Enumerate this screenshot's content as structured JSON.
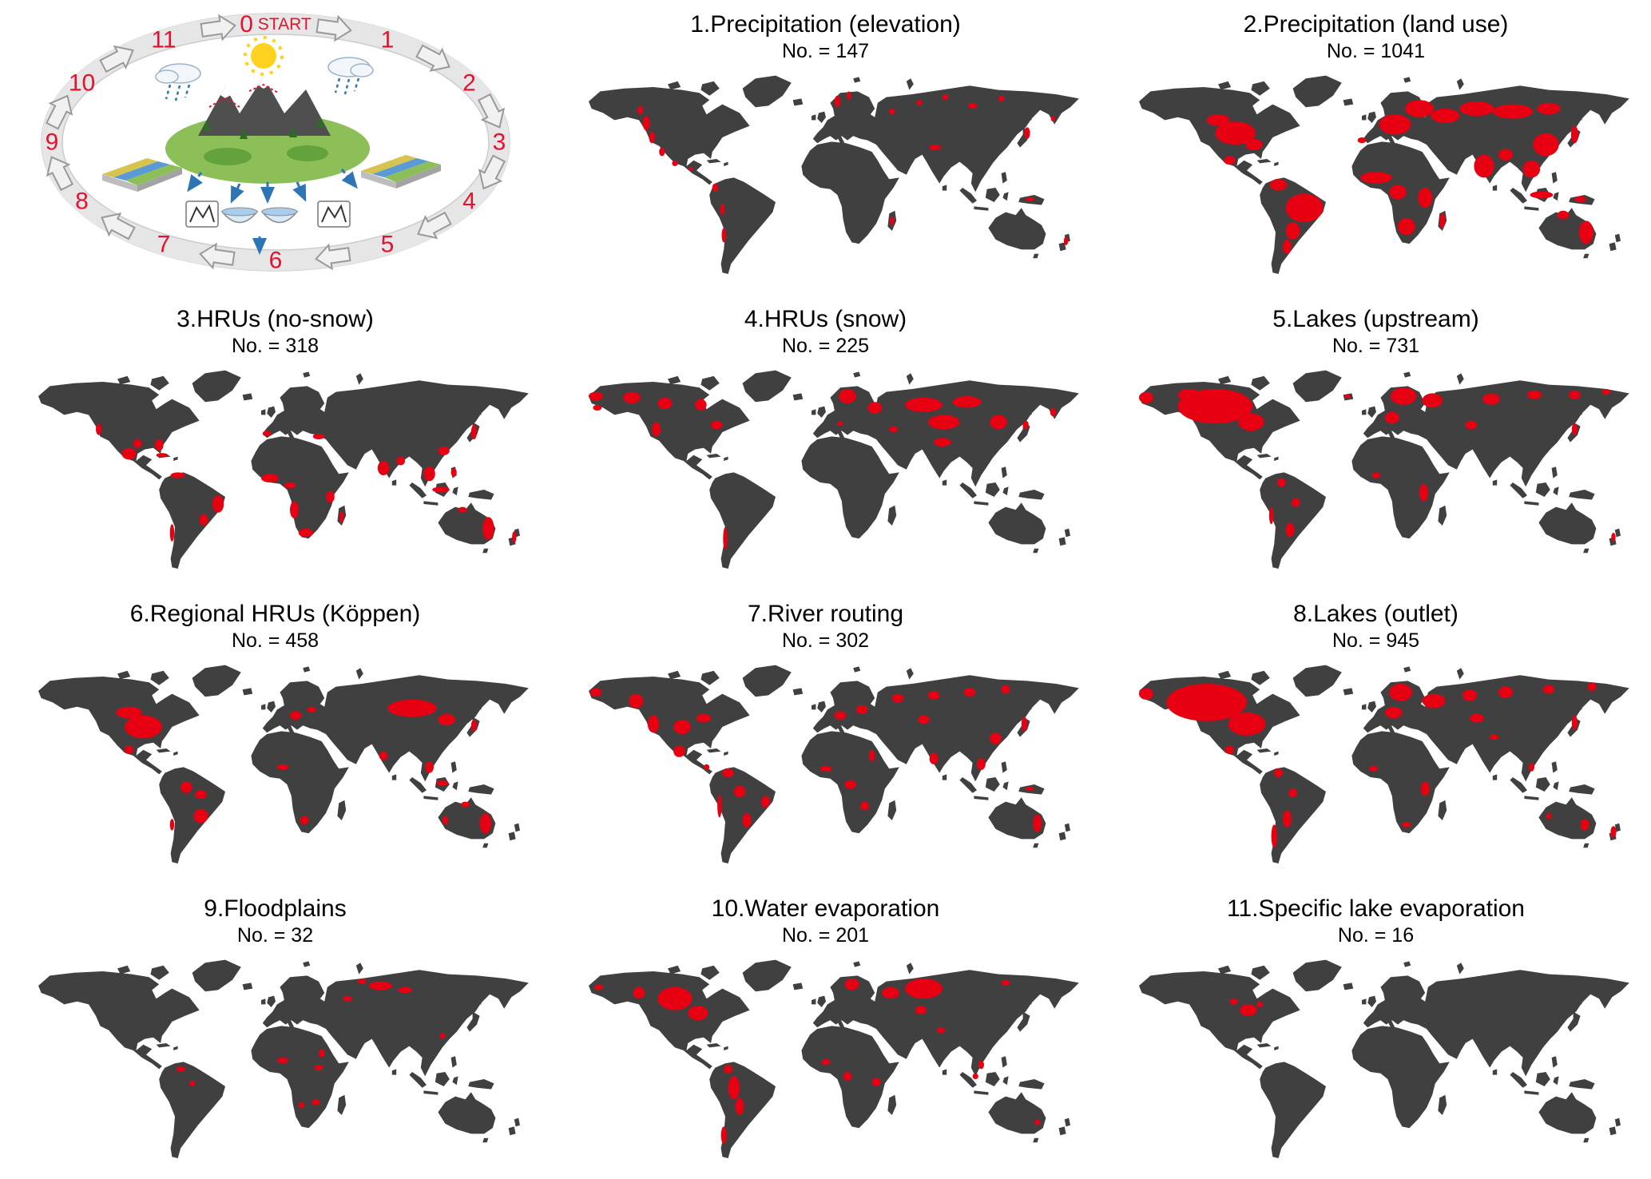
{
  "colors": {
    "land": "#404040",
    "highlight": "#e60012",
    "cycle_number": "#e8112d",
    "ring": "#e6e6e6"
  },
  "cycle": {
    "steps": [
      "0 START",
      "1",
      "2",
      "3",
      "4",
      "5",
      "6",
      "7",
      "8",
      "9",
      "10",
      "11"
    ]
  },
  "count_prefix": "No. =",
  "panels": [
    {
      "title": "1.Precipitation (elevation)",
      "count": 147,
      "count_label": "No. = 147",
      "highlights": [
        [
          55,
          40,
          2.5,
          5
        ],
        [
          51,
          31,
          2,
          3
        ],
        [
          59,
          50,
          2,
          4
        ],
        [
          66,
          60,
          2,
          3
        ],
        [
          75,
          68,
          2,
          2
        ],
        [
          86,
          72,
          1.5,
          1.5
        ],
        [
          103,
          85,
          2,
          3
        ],
        [
          108,
          100,
          1.5,
          4
        ],
        [
          109,
          118,
          1.5,
          5
        ],
        [
          188,
          25,
          2,
          4
        ],
        [
          196,
          21,
          1.5,
          3
        ],
        [
          226,
          32,
          2,
          2
        ],
        [
          245,
          26,
          2,
          2
        ],
        [
          263,
          22,
          2,
          2
        ],
        [
          282,
          28,
          3,
          2
        ],
        [
          302,
          23,
          2,
          2
        ],
        [
          256,
          57,
          4,
          2
        ],
        [
          320,
          47,
          2,
          4
        ],
        [
          338,
          37,
          1.5,
          2
        ],
        [
          226,
          108,
          1.5,
          3
        ],
        [
          322,
          93,
          3,
          1.5
        ],
        [
          347,
          122,
          1.5,
          3
        ]
      ]
    },
    {
      "title": "2.Precipitation (land use)",
      "count": 1041,
      "count_label": "No. = 1041",
      "highlights": [
        [
          82,
          47,
          14,
          8
        ],
        [
          70,
          38,
          8,
          4
        ],
        [
          95,
          55,
          6,
          4
        ],
        [
          78,
          66,
          4,
          3
        ],
        [
          112,
          83,
          6,
          4
        ],
        [
          130,
          99,
          13,
          10
        ],
        [
          122,
          115,
          5,
          6
        ],
        [
          118,
          126,
          3,
          5
        ],
        [
          193,
          41,
          11,
          7
        ],
        [
          210,
          30,
          10,
          6
        ],
        [
          228,
          35,
          10,
          5
        ],
        [
          250,
          30,
          12,
          5
        ],
        [
          275,
          32,
          14,
          5
        ],
        [
          300,
          30,
          8,
          4
        ],
        [
          298,
          55,
          9,
          8
        ],
        [
          288,
          72,
          6,
          6
        ],
        [
          255,
          70,
          7,
          8
        ],
        [
          270,
          62,
          5,
          4
        ],
        [
          180,
          78,
          11,
          4
        ],
        [
          195,
          88,
          6,
          5
        ],
        [
          214,
          92,
          5,
          7
        ],
        [
          201,
          112,
          6,
          6
        ],
        [
          226,
          108,
          2,
          5
        ],
        [
          295,
          90,
          8,
          2.5
        ],
        [
          322,
          93,
          4,
          2
        ],
        [
          318,
          48,
          2.5,
          6
        ],
        [
          326,
          116,
          5,
          8
        ],
        [
          310,
          104,
          4,
          3
        ],
        [
          170,
          52,
          3,
          2
        ]
      ]
    },
    {
      "title": "3.HRUs (no-snow)",
      "count": 318,
      "count_label": "No. = 318",
      "highlights": [
        [
          57,
          48,
          2,
          4
        ],
        [
          78,
          65,
          5,
          4
        ],
        [
          84,
          58,
          3,
          3
        ],
        [
          99,
          59,
          3,
          4
        ],
        [
          101,
          66,
          4,
          1.5
        ],
        [
          112,
          80,
          5,
          2
        ],
        [
          140,
          100,
          4,
          6
        ],
        [
          130,
          111,
          3,
          4
        ],
        [
          108,
          120,
          1.5,
          6
        ],
        [
          174,
          51,
          3,
          2
        ],
        [
          210,
          53,
          4,
          2
        ],
        [
          176,
          82,
          6,
          3
        ],
        [
          190,
          87,
          4,
          2
        ],
        [
          193,
          104,
          3,
          6
        ],
        [
          201,
          120,
          5,
          3
        ],
        [
          218,
          95,
          3,
          4
        ],
        [
          226,
          109,
          1.5,
          4
        ],
        [
          255,
          75,
          4,
          5
        ],
        [
          267,
          70,
          3,
          3
        ],
        [
          287,
          79,
          4,
          5
        ],
        [
          295,
          90,
          6,
          2
        ],
        [
          304,
          78,
          2,
          3
        ],
        [
          297,
          63,
          4,
          3
        ],
        [
          318,
          50,
          2,
          5
        ],
        [
          328,
          117,
          4,
          8
        ],
        [
          310,
          104,
          3,
          2
        ],
        [
          346,
          123,
          1.5,
          4
        ]
      ]
    },
    {
      "title": "4.HRUs (snow)",
      "count": 225,
      "count_label": "No. = 225",
      "highlights": [
        [
          20,
          25,
          5,
          3
        ],
        [
          21,
          33,
          3,
          2
        ],
        [
          45,
          26,
          6,
          4
        ],
        [
          68,
          30,
          5,
          4
        ],
        [
          93,
          31,
          4,
          4
        ],
        [
          62,
          48,
          3,
          5
        ],
        [
          104,
          45,
          4,
          3
        ],
        [
          195,
          25,
          6,
          5
        ],
        [
          214,
          33,
          5,
          4
        ],
        [
          248,
          31,
          13,
          5
        ],
        [
          278,
          29,
          10,
          4
        ],
        [
          262,
          43,
          11,
          5
        ],
        [
          261,
          57,
          6,
          3
        ],
        [
          300,
          43,
          6,
          5
        ],
        [
          338,
          36,
          2,
          3
        ],
        [
          227,
          48,
          3,
          2
        ],
        [
          190,
          44,
          2,
          1.5
        ],
        [
          110,
          124,
          1.5,
          8
        ],
        [
          319,
          45,
          2,
          3
        ]
      ]
    },
    {
      "title": "5.Lakes (upstream)",
      "count": 731,
      "count_label": "No. = 731",
      "highlights": [
        [
          68,
          32,
          26,
          12
        ],
        [
          93,
          43,
          9,
          6
        ],
        [
          20,
          26,
          5,
          4
        ],
        [
          50,
          24,
          8,
          4
        ],
        [
          199,
          25,
          9,
          6
        ],
        [
          219,
          28,
          7,
          5
        ],
        [
          191,
          40,
          5,
          4
        ],
        [
          260,
          27,
          6,
          4
        ],
        [
          290,
          24,
          5,
          3
        ],
        [
          318,
          24,
          4,
          3
        ],
        [
          340,
          22,
          3,
          2
        ],
        [
          318,
          48,
          2,
          4
        ],
        [
          246,
          45,
          4,
          3
        ],
        [
          213,
          92,
          3,
          6
        ],
        [
          180,
          80,
          3,
          2
        ],
        [
          114,
          85,
          3,
          3
        ],
        [
          124,
          99,
          3,
          3
        ],
        [
          120,
          118,
          3,
          5
        ],
        [
          107,
          108,
          1.5,
          6
        ],
        [
          345,
          123,
          1.5,
          3
        ],
        [
          160,
          25,
          2,
          1.5
        ]
      ]
    },
    {
      "title": "6.Regional HRUs (Köppen)",
      "count": 458,
      "count_label": "No. = 458",
      "highlights": [
        [
          88,
          50,
          13,
          8
        ],
        [
          78,
          40,
          9,
          4
        ],
        [
          78,
          66,
          3,
          3
        ],
        [
          118,
          92,
          4,
          4
        ],
        [
          128,
          97,
          4,
          3
        ],
        [
          128,
          112,
          5,
          5
        ],
        [
          108,
          118,
          1.5,
          4
        ],
        [
          194,
          42,
          4,
          3
        ],
        [
          205,
          38,
          3,
          2
        ],
        [
          275,
          37,
          17,
          6
        ],
        [
          299,
          45,
          6,
          4
        ],
        [
          287,
          78,
          3,
          4
        ],
        [
          255,
          70,
          3,
          3
        ],
        [
          185,
          78,
          4,
          2
        ],
        [
          200,
          115,
          3,
          3
        ],
        [
          326,
          117,
          4,
          7
        ],
        [
          312,
          104,
          3,
          2
        ],
        [
          298,
          115,
          2,
          3
        ],
        [
          318,
          49,
          2,
          4
        ],
        [
          296,
          89,
          4,
          2
        ]
      ]
    },
    {
      "title": "7.River routing",
      "count": 302,
      "count_label": "No. = 302",
      "highlights": [
        [
          20,
          26,
          4,
          3
        ],
        [
          48,
          32,
          5,
          5
        ],
        [
          60,
          48,
          4,
          6
        ],
        [
          80,
          50,
          6,
          5
        ],
        [
          95,
          44,
          5,
          3
        ],
        [
          78,
          67,
          4,
          4
        ],
        [
          97,
          78,
          2,
          2
        ],
        [
          112,
          82,
          4,
          3
        ],
        [
          120,
          95,
          4,
          4
        ],
        [
          138,
          102,
          3,
          4
        ],
        [
          125,
          115,
          3,
          5
        ],
        [
          106,
          105,
          1.5,
          8
        ],
        [
          190,
          42,
          4,
          3
        ],
        [
          205,
          38,
          4,
          3
        ],
        [
          230,
          30,
          4,
          3
        ],
        [
          255,
          28,
          4,
          3
        ],
        [
          280,
          26,
          4,
          3
        ],
        [
          305,
          24,
          3,
          3
        ],
        [
          248,
          45,
          4,
          3
        ],
        [
          255,
          72,
          3,
          4
        ],
        [
          288,
          76,
          3,
          4
        ],
        [
          298,
          58,
          4,
          4
        ],
        [
          318,
          48,
          2,
          5
        ],
        [
          322,
          93,
          3,
          1.5
        ],
        [
          327,
          117,
          3,
          6
        ],
        [
          212,
          70,
          2,
          4
        ],
        [
          197,
          90,
          4,
          3
        ],
        [
          207,
          105,
          3,
          3
        ],
        [
          180,
          79,
          4,
          2
        ]
      ]
    },
    {
      "title": "8.Lakes (outlet)",
      "count": 945,
      "count_label": "No. = 945",
      "highlights": [
        [
          62,
          33,
          28,
          13
        ],
        [
          90,
          48,
          13,
          8
        ],
        [
          20,
          27,
          5,
          4
        ],
        [
          78,
          66,
          3,
          3
        ],
        [
          197,
          26,
          8,
          6
        ],
        [
          192,
          40,
          6,
          4
        ],
        [
          220,
          32,
          8,
          5
        ],
        [
          245,
          28,
          5,
          4
        ],
        [
          270,
          26,
          5,
          4
        ],
        [
          300,
          24,
          4,
          3
        ],
        [
          330,
          22,
          3,
          3
        ],
        [
          250,
          44,
          5,
          3
        ],
        [
          262,
          57,
          3,
          2
        ],
        [
          318,
          47,
          2,
          5
        ],
        [
          288,
          78,
          2,
          3
        ],
        [
          112,
          82,
          3,
          3
        ],
        [
          122,
          96,
          3,
          3
        ],
        [
          118,
          114,
          3,
          6
        ],
        [
          109,
          126,
          2,
          8
        ],
        [
          214,
          93,
          3,
          5
        ],
        [
          201,
          118,
          3,
          2
        ],
        [
          178,
          79,
          3,
          2
        ],
        [
          325,
          118,
          3,
          4
        ],
        [
          300,
          112,
          2,
          2
        ],
        [
          345,
          123,
          2,
          4
        ]
      ]
    },
    {
      "title": "9.Floodplains",
      "count": 32,
      "count_label": "No. = 32",
      "highlights": [
        [
          253,
          25,
          8,
          3
        ],
        [
          270,
          28,
          5,
          2
        ],
        [
          240,
          22,
          3,
          2
        ],
        [
          230,
          34,
          3,
          2
        ],
        [
          185,
          77,
          4,
          2
        ],
        [
          212,
          72,
          2,
          3
        ],
        [
          210,
          82,
          3,
          2
        ],
        [
          208,
          106,
          3,
          2
        ],
        [
          198,
          108,
          2,
          2
        ],
        [
          114,
          83,
          3,
          2
        ],
        [
          122,
          93,
          2,
          2
        ],
        [
          296,
          60,
          2,
          2
        ]
      ]
    },
    {
      "title": "10.Water evaporation",
      "count": 201,
      "count_label": "No. = 201",
      "highlights": [
        [
          75,
          34,
          12,
          8
        ],
        [
          91,
          44,
          7,
          5
        ],
        [
          50,
          30,
          4,
          4
        ],
        [
          22,
          26,
          3,
          2
        ],
        [
          248,
          27,
          13,
          7
        ],
        [
          225,
          30,
          6,
          4
        ],
        [
          198,
          24,
          5,
          4
        ],
        [
          246,
          42,
          4,
          3
        ],
        [
          260,
          56,
          3,
          2
        ],
        [
          112,
          83,
          3,
          3
        ],
        [
          116,
          96,
          4,
          8
        ],
        [
          120,
          109,
          3,
          6
        ],
        [
          109,
          129,
          2,
          6
        ],
        [
          195,
          88,
          3,
          3
        ],
        [
          215,
          92,
          3,
          3
        ],
        [
          180,
          78,
          3,
          2
        ],
        [
          288,
          80,
          2,
          3
        ],
        [
          284,
          88,
          2,
          2
        ],
        [
          327,
          120,
          2,
          2
        ],
        [
          305,
          23,
          3,
          2
        ]
      ]
    },
    {
      "title": "11.Specific lake evaporation",
      "count": 16,
      "count_label": "No. = 16",
      "highlights": [
        [
          91,
          42,
          6,
          4
        ],
        [
          81,
          36,
          3,
          2
        ],
        [
          99,
          38,
          2,
          2
        ]
      ]
    }
  ],
  "chart_data": {
    "type": "map-grid",
    "categories": [
      "1.Precipitation (elevation)",
      "2.Precipitation (land use)",
      "3.HRUs (no-snow)",
      "4.HRUs (snow)",
      "5.Lakes (upstream)",
      "6.Regional HRUs (Köppen)",
      "7.River routing",
      "8.Lakes (outlet)",
      "9.Floodplains",
      "10.Water evaporation",
      "11.Specific lake evaporation"
    ],
    "values": [
      147,
      1041,
      318,
      225,
      731,
      458,
      302,
      945,
      32,
      201,
      16
    ],
    "value_label": "No."
  }
}
